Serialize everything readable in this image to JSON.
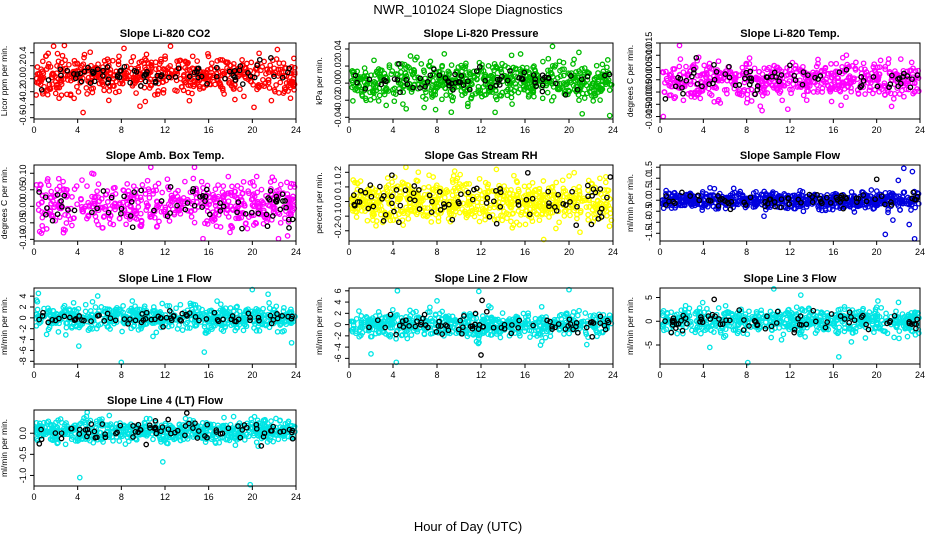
{
  "figure": {
    "title": "NWR_101024  Slope Diagnostics",
    "xlabel": "Hour of Day (UTC)"
  },
  "chart_data": [
    {
      "type": "scatter",
      "title": "Slope Li-820 CO2",
      "ylabel": "Licor ppm per min.",
      "color": "#ff0000",
      "xlim": [
        0,
        24
      ],
      "ylim": [
        -0.62,
        0.55
      ],
      "xticks": [
        0,
        4,
        8,
        12,
        16,
        20,
        24
      ],
      "yticks": [
        -0.6,
        -0.4,
        -0.2,
        0.0,
        0.2,
        0.4
      ],
      "ytick_labels": [
        "-0.6",
        "-0.4",
        "-0.2",
        "0.0",
        "0.2",
        "0.4"
      ],
      "n_points": 560,
      "n_black": 75,
      "center": 0.05,
      "spread": 0.14,
      "black_spread": 0.1,
      "outliers": [
        {
          "x": 1.8,
          "y": 0.5,
          "c": "color"
        },
        {
          "x": 4.5,
          "y": -0.52,
          "c": "color"
        },
        {
          "x": 2.3,
          "y": -0.3,
          "c": "color"
        },
        {
          "x": 12.5,
          "y": 0.5,
          "c": "color"
        },
        {
          "x": 22.3,
          "y": 0.45,
          "c": "color"
        },
        {
          "x": 10.2,
          "y": -0.35,
          "c": "color"
        },
        {
          "x": 18.4,
          "y": -0.32,
          "c": "color"
        },
        {
          "x": 23.5,
          "y": -0.3,
          "c": "color"
        },
        {
          "x": 0.2,
          "y": -0.25,
          "c": "color"
        }
      ]
    },
    {
      "type": "scatter",
      "title": "Slope Li-820 Pressure",
      "ylabel": "kPa per min.",
      "color": "#00bb00",
      "xlim": [
        0,
        24
      ],
      "ylim": [
        -0.042,
        0.047
      ],
      "xticks": [
        0,
        4,
        8,
        12,
        16,
        20,
        24
      ],
      "yticks": [
        -0.04,
        -0.02,
        0.0,
        0.02,
        0.04
      ],
      "ytick_labels": [
        "-0.04",
        "-0.02",
        "0.00",
        "0.02",
        "0.04"
      ],
      "n_points": 620,
      "n_black": 70,
      "center": 0.002,
      "spread": 0.012,
      "black_spread": 0.008,
      "outliers": [
        {
          "x": 18.5,
          "y": 0.043,
          "c": "color"
        },
        {
          "x": 23.7,
          "y": -0.038,
          "c": "color"
        },
        {
          "x": 9.3,
          "y": -0.034,
          "c": "color"
        },
        {
          "x": 5.2,
          "y": -0.03,
          "c": "color"
        },
        {
          "x": 20.9,
          "y": 0.036,
          "c": "color"
        }
      ]
    },
    {
      "type": "scatter",
      "title": "Slope Li-820 Temp.",
      "ylabel": "degrees C per min.",
      "color": "#ff00ff",
      "xlim": [
        0,
        24
      ],
      "ylim": [
        -0.016,
        0.015
      ],
      "xticks": [
        0,
        4,
        8,
        12,
        16,
        20,
        24
      ],
      "yticks": [
        -0.015,
        -0.01,
        -0.005,
        0.0,
        0.005,
        0.01,
        0.015
      ],
      "ytick_labels": [
        "-0.015",
        "-0.010",
        "-0.005",
        "0.000",
        "0.005",
        "0.010",
        "0.015"
      ],
      "n_points": 560,
      "n_black": 70,
      "center": 0.0,
      "spread": 0.0038,
      "black_spread": 0.003,
      "outliers": [
        {
          "x": 1.8,
          "y": 0.014,
          "c": "color"
        },
        {
          "x": 0.3,
          "y": -0.015,
          "c": "color"
        },
        {
          "x": 11.8,
          "y": -0.012,
          "c": "color"
        },
        {
          "x": 5.0,
          "y": -0.009,
          "c": "color"
        }
      ]
    },
    {
      "type": "scatter",
      "title": "Slope Amb. Box Temp.",
      "ylabel": "degrees C per min.",
      "color": "#ff00ff",
      "xlim": [
        0,
        24
      ],
      "ylim": [
        -0.105,
        0.125
      ],
      "xticks": [
        0,
        4,
        8,
        12,
        16,
        20,
        24
      ],
      "yticks": [
        -0.1,
        -0.05,
        0.0,
        0.05,
        0.1
      ],
      "ytick_labels": [
        "-0.10",
        "-0.05",
        "0.00",
        "0.05",
        "0.10"
      ],
      "n_points": 520,
      "n_black": 70,
      "center": 0.005,
      "spread": 0.035,
      "black_spread": 0.03,
      "outliers": [
        {
          "x": 14.7,
          "y": 0.118,
          "c": "color"
        },
        {
          "x": 22.4,
          "y": -0.098,
          "c": "color"
        },
        {
          "x": 5.3,
          "y": 0.1,
          "c": "color"
        },
        {
          "x": 2.7,
          "y": -0.08,
          "c": "color"
        },
        {
          "x": 17.8,
          "y": 0.09,
          "c": "color"
        }
      ]
    },
    {
      "type": "scatter",
      "title": "Slope Gas Stream RH",
      "ylabel": "percent per min.",
      "color": "#ffff00",
      "xlim": [
        0,
        24
      ],
      "ylim": [
        -0.27,
        0.25
      ],
      "xticks": [
        0,
        4,
        8,
        12,
        16,
        20,
        24
      ],
      "yticks": [
        -0.2,
        -0.1,
        0.0,
        0.1,
        0.2
      ],
      "ytick_labels": [
        "-0.2",
        "-0.1",
        "0.0",
        "0.1",
        "0.2"
      ],
      "n_points": 680,
      "n_black": 85,
      "center": 0.0,
      "spread": 0.075,
      "black_spread": 0.07,
      "outliers": [
        {
          "x": 17.7,
          "y": -0.26,
          "c": "color"
        },
        {
          "x": 13.4,
          "y": 0.22,
          "c": "color"
        },
        {
          "x": 3.9,
          "y": 0.18,
          "c": "black"
        },
        {
          "x": 21.0,
          "y": -0.21,
          "c": "color"
        }
      ]
    },
    {
      "type": "scatter",
      "title": "Slope Sample Flow",
      "ylabel": "ml/min per min.",
      "color": "#0000dd",
      "xlim": [
        0,
        24
      ],
      "ylim": [
        -1.85,
        1.6
      ],
      "xticks": [
        0,
        4,
        8,
        12,
        16,
        20,
        24
      ],
      "yticks": [
        -1.5,
        -1.0,
        -0.5,
        0.0,
        0.5,
        1.0,
        1.5
      ],
      "ytick_labels": [
        "-1.5",
        "-1.0",
        "-0.5",
        "0.0",
        "0.5",
        "1.0",
        "1.5"
      ],
      "n_points": 620,
      "n_black": 70,
      "center": 0.0,
      "spread": 0.2,
      "black_spread": 0.15,
      "outliers": [
        {
          "x": 22.5,
          "y": 1.45,
          "c": "color"
        },
        {
          "x": 23.3,
          "y": 1.3,
          "c": "color"
        },
        {
          "x": 23.5,
          "y": -1.75,
          "c": "color"
        },
        {
          "x": 20.8,
          "y": -1.55,
          "c": "color"
        },
        {
          "x": 22.0,
          "y": 0.9,
          "c": "color"
        },
        {
          "x": 21.5,
          "y": -0.9,
          "c": "color"
        },
        {
          "x": 20.0,
          "y": 0.95,
          "c": "black"
        },
        {
          "x": 23.0,
          "y": -1.1,
          "c": "color"
        }
      ]
    },
    {
      "type": "scatter",
      "title": "Slope Line 1 Flow",
      "ylabel": "ml/min per min.",
      "color": "#00e5e5",
      "xlim": [
        0,
        24
      ],
      "ylim": [
        -8.5,
        5.5
      ],
      "xticks": [
        0,
        4,
        8,
        12,
        16,
        20,
        24
      ],
      "yticks": [
        -8,
        -6,
        -4,
        -2,
        0,
        2,
        4
      ],
      "ytick_labels": [
        "-8",
        "-6",
        "-4",
        "-2",
        "0",
        "2",
        "4"
      ],
      "n_points": 600,
      "n_black": 75,
      "center": 0.0,
      "spread": 1.1,
      "black_spread": 0.6,
      "outliers": [
        {
          "x": 0.4,
          "y": 4.5,
          "c": "color"
        },
        {
          "x": 8.0,
          "y": -8.2,
          "c": "color"
        },
        {
          "x": 20.0,
          "y": 5.2,
          "c": "color"
        },
        {
          "x": 15.6,
          "y": -6.3,
          "c": "color"
        },
        {
          "x": 4.1,
          "y": -5.2,
          "c": "color"
        },
        {
          "x": 23.6,
          "y": -4.6,
          "c": "color"
        }
      ]
    },
    {
      "type": "scatter",
      "title": "Slope Line 2 Flow",
      "ylabel": "ml/min per min.",
      "color": "#00e5e5",
      "xlim": [
        0,
        24
      ],
      "ylim": [
        -7,
        6.5
      ],
      "xticks": [
        0,
        4,
        8,
        12,
        16,
        20,
        24
      ],
      "yticks": [
        -6,
        -4,
        -2,
        0,
        2,
        4,
        6
      ],
      "ytick_labels": [
        "-6",
        "-4",
        "-2",
        "0",
        "2",
        "4",
        "6"
      ],
      "n_points": 600,
      "n_black": 75,
      "center": 0.0,
      "spread": 1.1,
      "black_spread": 0.9,
      "outliers": [
        {
          "x": 4.4,
          "y": 6.0,
          "c": "color"
        },
        {
          "x": 11.8,
          "y": 5.9,
          "c": "color"
        },
        {
          "x": 20.0,
          "y": 6.2,
          "c": "color"
        },
        {
          "x": 12.1,
          "y": 4.3,
          "c": "black"
        },
        {
          "x": 4.3,
          "y": -6.7,
          "c": "color"
        },
        {
          "x": 12.0,
          "y": -5.4,
          "c": "black"
        },
        {
          "x": 2.0,
          "y": -5.2,
          "c": "color"
        },
        {
          "x": 8.0,
          "y": 4.2,
          "c": "color"
        }
      ]
    },
    {
      "type": "scatter",
      "title": "Slope Line 3 Flow",
      "ylabel": "ml/min per min.",
      "color": "#00e5e5",
      "xlim": [
        0,
        24
      ],
      "ylim": [
        -9,
        7
      ],
      "xticks": [
        0,
        4,
        8,
        12,
        16,
        20,
        24
      ],
      "yticks": [
        -5,
        0,
        5
      ],
      "ytick_labels": [
        "-5",
        "0",
        "5"
      ],
      "n_points": 600,
      "n_black": 75,
      "center": 0.0,
      "spread": 1.4,
      "black_spread": 1.1,
      "outliers": [
        {
          "x": 8.1,
          "y": -8.7,
          "c": "color"
        },
        {
          "x": 10.5,
          "y": 6.8,
          "c": "color"
        },
        {
          "x": 16.5,
          "y": -7.5,
          "c": "color"
        },
        {
          "x": 5.0,
          "y": 4.6,
          "c": "black"
        },
        {
          "x": 4.6,
          "y": -5.5,
          "c": "color"
        },
        {
          "x": 13.0,
          "y": 5.5,
          "c": "color"
        }
      ]
    },
    {
      "type": "scatter",
      "title": "Slope Line 4 (LT) Flow",
      "ylabel": "ml/min per min.",
      "color": "#00e5e5",
      "xlim": [
        0,
        24
      ],
      "ylim": [
        -1.25,
        0.55
      ],
      "xticks": [
        0,
        4,
        8,
        12,
        16,
        20,
        24
      ],
      "yticks": [
        -1.0,
        -0.5,
        0.0
      ],
      "ytick_labels": [
        "-1.0",
        "-0.5",
        "0.0"
      ],
      "n_points": 640,
      "n_black": 80,
      "center": 0.05,
      "spread": 0.13,
      "black_spread": 0.12,
      "outliers": [
        {
          "x": 4.2,
          "y": -1.05,
          "c": "color"
        },
        {
          "x": 19.8,
          "y": -1.22,
          "c": "color"
        },
        {
          "x": 11.8,
          "y": -0.68,
          "c": "color"
        },
        {
          "x": 14.0,
          "y": 0.48,
          "c": "black"
        },
        {
          "x": 6.9,
          "y": 0.42,
          "c": "color"
        }
      ]
    }
  ]
}
